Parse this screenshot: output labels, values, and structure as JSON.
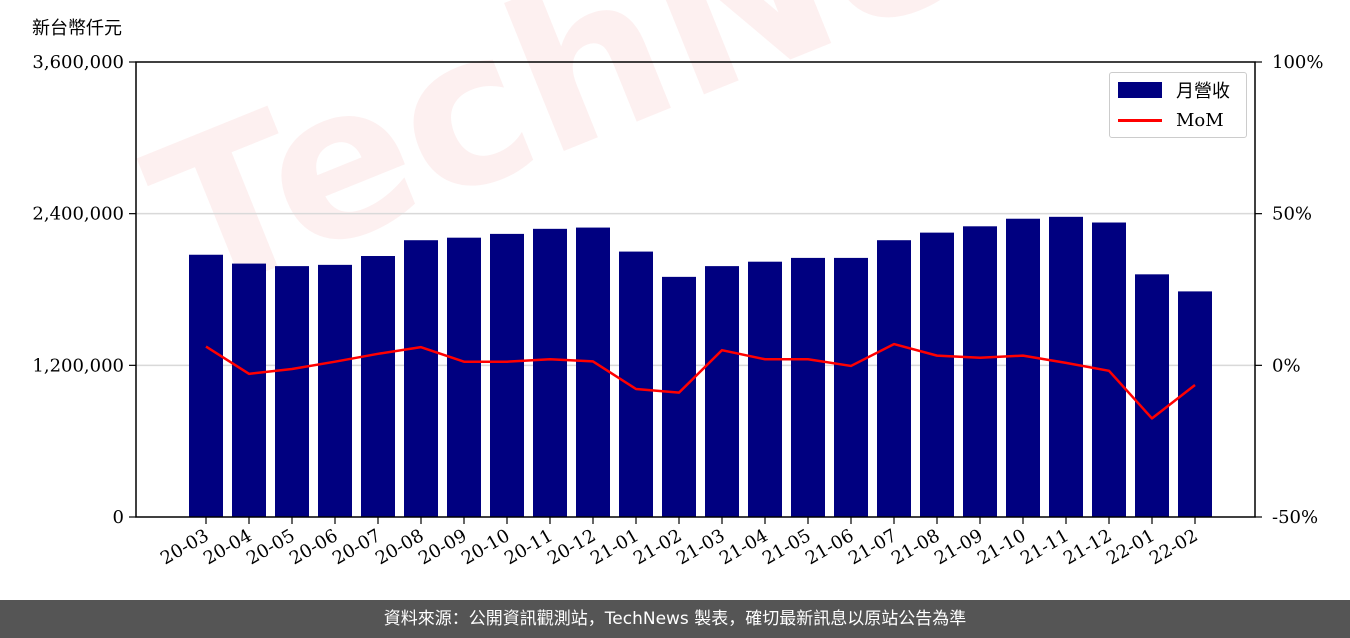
{
  "watermark": "TechNews",
  "chart_data": {
    "type": "bar",
    "unit_label": "新台幣仟元",
    "categories": [
      "20-03",
      "20-04",
      "20-05",
      "20-06",
      "20-07",
      "20-08",
      "20-09",
      "20-10",
      "20-11",
      "20-12",
      "21-01",
      "21-02",
      "21-03",
      "21-04",
      "21-05",
      "21-06",
      "21-07",
      "21-08",
      "21-09",
      "21-10",
      "21-11",
      "21-12",
      "22-01",
      "22-02"
    ],
    "series": [
      {
        "name": "月營收",
        "kind": "bar",
        "axis": "left",
        "color": "#000080",
        "values": [
          2075000,
          2005000,
          1985000,
          1995000,
          2065000,
          2190000,
          2210000,
          2240000,
          2280000,
          2290000,
          2100000,
          1900000,
          1985000,
          2020000,
          2050000,
          2050000,
          2190000,
          2250000,
          2300000,
          2360000,
          2375000,
          2330000,
          1920000,
          1785000
        ]
      },
      {
        "name": "MoM",
        "kind": "line",
        "axis": "right",
        "color": "#ff0000",
        "values": [
          6.2,
          -2.8,
          -1.2,
          1.2,
          3.8,
          6.0,
          1.2,
          1.2,
          2.0,
          1.3,
          -7.8,
          -9.0,
          5.0,
          2.0,
          2.0,
          -0.2,
          7.0,
          3.2,
          2.5,
          3.2,
          0.8,
          -1.8,
          -17.5,
          -6.5
        ]
      }
    ],
    "y_left": {
      "lim": [
        0,
        3600000
      ],
      "ticks": [
        0,
        1200000,
        2400000,
        3600000
      ],
      "tick_labels": [
        "0",
        "1,200,000",
        "2,400,000",
        "3,600,000"
      ]
    },
    "y_right": {
      "lim": [
        -50,
        100
      ],
      "ticks": [
        -50,
        0,
        50,
        100
      ],
      "tick_labels": [
        "-50%",
        "0%",
        "50%",
        "100%"
      ]
    },
    "grid": "horizontal",
    "legend_position": "top-right"
  },
  "footer": {
    "source_text": "資料來源：公開資訊觀測站，TechNews 製表，確切最新訊息以原站公告為準"
  }
}
